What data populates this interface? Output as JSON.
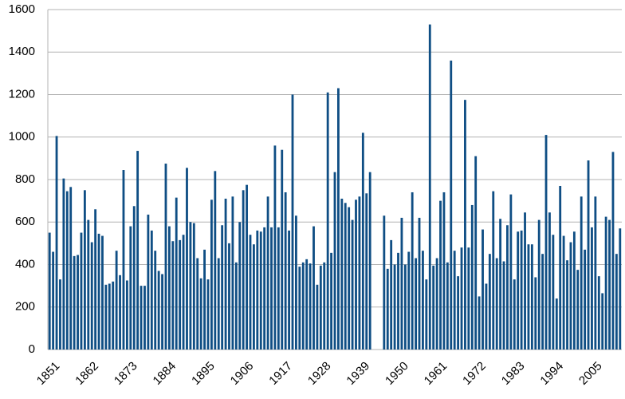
{
  "chart_data": {
    "type": "bar",
    "color": "#0f4e84",
    "grid": true,
    "ylim": [
      0,
      1600
    ],
    "yticks": [
      0,
      200,
      400,
      600,
      800,
      1000,
      1200,
      1400,
      1600
    ],
    "categories": [
      "1851",
      null,
      null,
      null,
      null,
      null,
      null,
      null,
      null,
      null,
      null,
      "1862",
      null,
      null,
      null,
      null,
      null,
      null,
      null,
      null,
      null,
      null,
      "1873",
      null,
      null,
      null,
      null,
      null,
      null,
      null,
      null,
      null,
      null,
      "1884",
      null,
      null,
      null,
      null,
      null,
      null,
      null,
      null,
      null,
      null,
      "1895",
      null,
      null,
      null,
      null,
      null,
      null,
      null,
      null,
      null,
      null,
      "1906",
      null,
      null,
      null,
      null,
      null,
      null,
      null,
      null,
      null,
      null,
      "1917",
      null,
      null,
      null,
      null,
      null,
      null,
      null,
      null,
      null,
      null,
      "1928",
      null,
      null,
      null,
      null,
      null,
      null,
      null,
      null,
      null,
      null,
      "1939",
      null,
      null,
      null,
      null,
      null,
      null,
      null,
      null,
      null,
      null,
      "1950",
      null,
      null,
      null,
      null,
      null,
      null,
      null,
      null,
      null,
      null,
      "1961",
      null,
      null,
      null,
      null,
      null,
      null,
      null,
      null,
      null,
      null,
      "1972",
      null,
      null,
      null,
      null,
      null,
      null,
      null,
      null,
      null,
      null,
      "1983",
      null,
      null,
      null,
      null,
      null,
      null,
      null,
      null,
      null,
      null,
      "1994",
      null,
      null,
      null,
      null,
      null,
      null,
      null,
      null,
      null,
      null,
      "2005",
      null,
      null,
      null,
      null,
      null,
      null,
      null,
      null
    ],
    "values": [
      550,
      460,
      1005,
      330,
      805,
      745,
      765,
      440,
      445,
      550,
      750,
      610,
      505,
      660,
      545,
      535,
      305,
      310,
      320,
      465,
      350,
      845,
      325,
      580,
      675,
      935,
      300,
      300,
      635,
      560,
      465,
      370,
      355,
      875,
      580,
      510,
      715,
      515,
      540,
      855,
      600,
      595,
      430,
      335,
      470,
      330,
      705,
      840,
      430,
      585,
      710,
      500,
      720,
      410,
      600,
      750,
      775,
      540,
      495,
      560,
      555,
      575,
      720,
      575,
      960,
      575,
      940,
      740,
      560,
      1200,
      630,
      390,
      410,
      425,
      405,
      580,
      305,
      395,
      410,
      1210,
      455,
      835,
      1230,
      710,
      690,
      670,
      610,
      705,
      720,
      1020,
      735,
      835,
      null,
      null,
      null,
      630,
      380,
      515,
      400,
      455,
      620,
      400,
      460,
      740,
      430,
      620,
      465,
      330,
      1530,
      395,
      430,
      700,
      740,
      410,
      1360,
      465,
      345,
      480,
      1175,
      480,
      680,
      910,
      250,
      565,
      310,
      450,
      745,
      430,
      615,
      415,
      585,
      730,
      330,
      555,
      560,
      645,
      495,
      495,
      340,
      610,
      450,
      1010,
      645,
      540,
      240,
      770,
      535,
      420,
      505,
      555,
      375,
      720,
      470,
      890,
      575,
      720,
      345,
      265,
      625,
      610,
      930,
      450,
      570
    ]
  }
}
